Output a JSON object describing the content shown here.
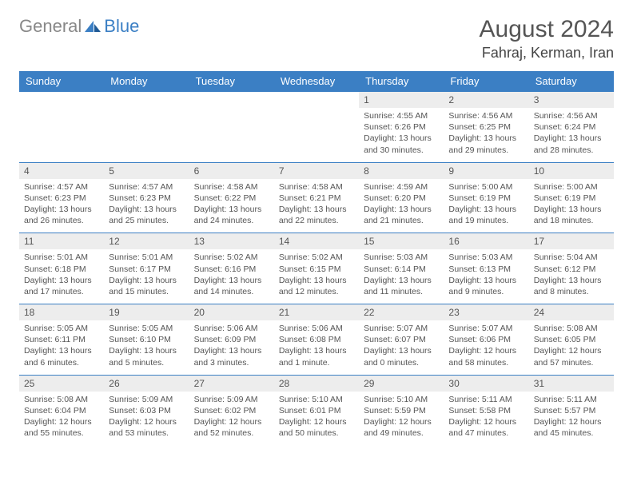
{
  "logo": {
    "text1": "General",
    "text2": "Blue"
  },
  "title": {
    "month": "August 2024",
    "location": "Fahraj, Kerman, Iran"
  },
  "colors": {
    "header_bg": "#3b7fc4",
    "header_text": "#ffffff",
    "daynum_bg": "#ededed",
    "row_border": "#3b7fc4",
    "body_text": "#555555",
    "page_bg": "#ffffff"
  },
  "weekdays": [
    "Sunday",
    "Monday",
    "Tuesday",
    "Wednesday",
    "Thursday",
    "Friday",
    "Saturday"
  ],
  "blank_leading": 4,
  "days": [
    {
      "n": 1,
      "sunrise": "4:55 AM",
      "sunset": "6:26 PM",
      "dh": 13,
      "dm": 30
    },
    {
      "n": 2,
      "sunrise": "4:56 AM",
      "sunset": "6:25 PM",
      "dh": 13,
      "dm": 29
    },
    {
      "n": 3,
      "sunrise": "4:56 AM",
      "sunset": "6:24 PM",
      "dh": 13,
      "dm": 28
    },
    {
      "n": 4,
      "sunrise": "4:57 AM",
      "sunset": "6:23 PM",
      "dh": 13,
      "dm": 26
    },
    {
      "n": 5,
      "sunrise": "4:57 AM",
      "sunset": "6:23 PM",
      "dh": 13,
      "dm": 25
    },
    {
      "n": 6,
      "sunrise": "4:58 AM",
      "sunset": "6:22 PM",
      "dh": 13,
      "dm": 24
    },
    {
      "n": 7,
      "sunrise": "4:58 AM",
      "sunset": "6:21 PM",
      "dh": 13,
      "dm": 22
    },
    {
      "n": 8,
      "sunrise": "4:59 AM",
      "sunset": "6:20 PM",
      "dh": 13,
      "dm": 21
    },
    {
      "n": 9,
      "sunrise": "5:00 AM",
      "sunset": "6:19 PM",
      "dh": 13,
      "dm": 19
    },
    {
      "n": 10,
      "sunrise": "5:00 AM",
      "sunset": "6:19 PM",
      "dh": 13,
      "dm": 18
    },
    {
      "n": 11,
      "sunrise": "5:01 AM",
      "sunset": "6:18 PM",
      "dh": 13,
      "dm": 17
    },
    {
      "n": 12,
      "sunrise": "5:01 AM",
      "sunset": "6:17 PM",
      "dh": 13,
      "dm": 15
    },
    {
      "n": 13,
      "sunrise": "5:02 AM",
      "sunset": "6:16 PM",
      "dh": 13,
      "dm": 14
    },
    {
      "n": 14,
      "sunrise": "5:02 AM",
      "sunset": "6:15 PM",
      "dh": 13,
      "dm": 12
    },
    {
      "n": 15,
      "sunrise": "5:03 AM",
      "sunset": "6:14 PM",
      "dh": 13,
      "dm": 11
    },
    {
      "n": 16,
      "sunrise": "5:03 AM",
      "sunset": "6:13 PM",
      "dh": 13,
      "dm": 9
    },
    {
      "n": 17,
      "sunrise": "5:04 AM",
      "sunset": "6:12 PM",
      "dh": 13,
      "dm": 8
    },
    {
      "n": 18,
      "sunrise": "5:05 AM",
      "sunset": "6:11 PM",
      "dh": 13,
      "dm": 6
    },
    {
      "n": 19,
      "sunrise": "5:05 AM",
      "sunset": "6:10 PM",
      "dh": 13,
      "dm": 5
    },
    {
      "n": 20,
      "sunrise": "5:06 AM",
      "sunset": "6:09 PM",
      "dh": 13,
      "dm": 3
    },
    {
      "n": 21,
      "sunrise": "5:06 AM",
      "sunset": "6:08 PM",
      "dh": 13,
      "dm": 1
    },
    {
      "n": 22,
      "sunrise": "5:07 AM",
      "sunset": "6:07 PM",
      "dh": 13,
      "dm": 0
    },
    {
      "n": 23,
      "sunrise": "5:07 AM",
      "sunset": "6:06 PM",
      "dh": 12,
      "dm": 58
    },
    {
      "n": 24,
      "sunrise": "5:08 AM",
      "sunset": "6:05 PM",
      "dh": 12,
      "dm": 57
    },
    {
      "n": 25,
      "sunrise": "5:08 AM",
      "sunset": "6:04 PM",
      "dh": 12,
      "dm": 55
    },
    {
      "n": 26,
      "sunrise": "5:09 AM",
      "sunset": "6:03 PM",
      "dh": 12,
      "dm": 53
    },
    {
      "n": 27,
      "sunrise": "5:09 AM",
      "sunset": "6:02 PM",
      "dh": 12,
      "dm": 52
    },
    {
      "n": 28,
      "sunrise": "5:10 AM",
      "sunset": "6:01 PM",
      "dh": 12,
      "dm": 50
    },
    {
      "n": 29,
      "sunrise": "5:10 AM",
      "sunset": "5:59 PM",
      "dh": 12,
      "dm": 49
    },
    {
      "n": 30,
      "sunrise": "5:11 AM",
      "sunset": "5:58 PM",
      "dh": 12,
      "dm": 47
    },
    {
      "n": 31,
      "sunrise": "5:11 AM",
      "sunset": "5:57 PM",
      "dh": 12,
      "dm": 45
    }
  ],
  "labels": {
    "sunrise": "Sunrise:",
    "sunset": "Sunset:",
    "daylight": "Daylight:",
    "hours": "hours",
    "and": "and",
    "minute": "minute.",
    "minutes": "minutes."
  }
}
